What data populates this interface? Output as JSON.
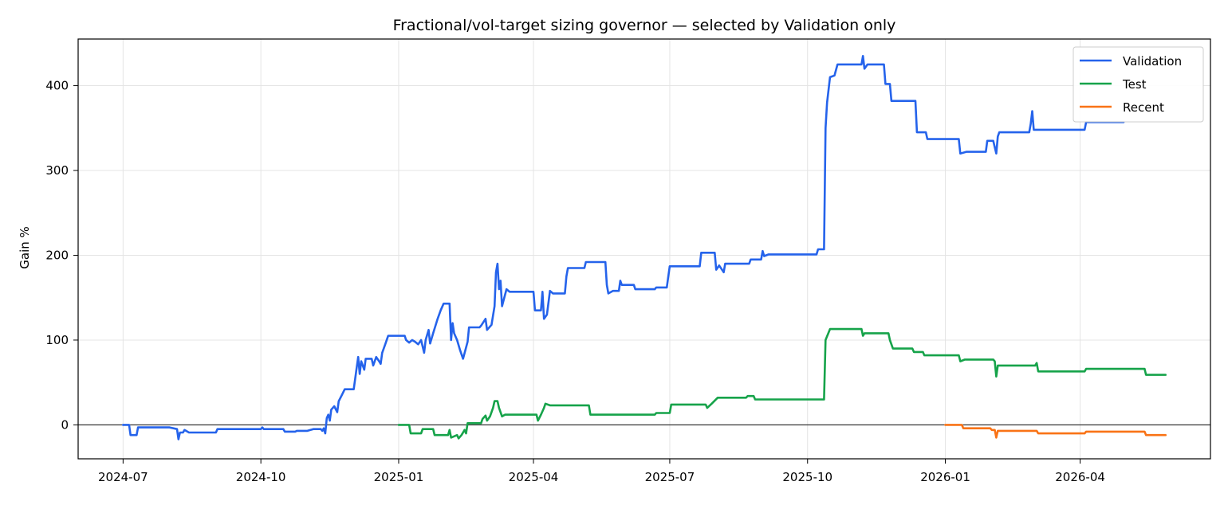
{
  "chart_data": {
    "type": "line",
    "title": "Fractional/vol-target sizing governor — selected by Validation only",
    "xlabel": "",
    "ylabel": "Gain %",
    "x_axis": {
      "type": "date",
      "range": [
        "2024-06-01",
        "2026-06-27"
      ],
      "ticks": [
        "2024-07",
        "2024-10",
        "2025-01",
        "2025-04",
        "2025-07",
        "2025-10",
        "2026-01",
        "2026-04"
      ]
    },
    "y_axis": {
      "range": [
        -40,
        455
      ],
      "ticks": [
        0,
        100,
        200,
        300,
        400
      ]
    },
    "grid": true,
    "zero_line": true,
    "legend": {
      "placement": "top-right"
    },
    "series": [
      {
        "name": "Validation",
        "color": "#2563eb",
        "points": [
          [
            "2024-07-01",
            0
          ],
          [
            "2024-07-05",
            0
          ],
          [
            "2024-07-06",
            -12
          ],
          [
            "2024-07-10",
            -12
          ],
          [
            "2024-07-11",
            -3
          ],
          [
            "2024-08-01",
            -3
          ],
          [
            "2024-08-06",
            -5
          ],
          [
            "2024-08-07",
            -17
          ],
          [
            "2024-08-08",
            -9
          ],
          [
            "2024-08-10",
            -9
          ],
          [
            "2024-08-11",
            -6
          ],
          [
            "2024-08-14",
            -9
          ],
          [
            "2024-09-01",
            -9
          ],
          [
            "2024-09-02",
            -5
          ],
          [
            "2024-10-01",
            -5
          ],
          [
            "2024-10-02",
            -3
          ],
          [
            "2024-10-03",
            -5
          ],
          [
            "2024-10-16",
            -5
          ],
          [
            "2024-10-17",
            -8
          ],
          [
            "2024-10-24",
            -8
          ],
          [
            "2024-10-25",
            -7
          ],
          [
            "2024-11-01",
            -7
          ],
          [
            "2024-11-05",
            -5
          ],
          [
            "2024-11-10",
            -5
          ],
          [
            "2024-11-11",
            -7
          ],
          [
            "2024-11-12",
            -4
          ],
          [
            "2024-11-13",
            -10
          ],
          [
            "2024-11-14",
            8
          ],
          [
            "2024-11-15",
            12
          ],
          [
            "2024-11-16",
            5
          ],
          [
            "2024-11-17",
            18
          ],
          [
            "2024-11-19",
            22
          ],
          [
            "2024-11-21",
            15
          ],
          [
            "2024-11-22",
            28
          ],
          [
            "2024-11-24",
            35
          ],
          [
            "2024-11-26",
            42
          ],
          [
            "2024-12-02",
            42
          ],
          [
            "2024-12-03",
            55
          ],
          [
            "2024-12-04",
            68
          ],
          [
            "2024-12-05",
            80
          ],
          [
            "2024-12-06",
            60
          ],
          [
            "2024-12-07",
            75
          ],
          [
            "2024-12-09",
            65
          ],
          [
            "2024-12-10",
            78
          ],
          [
            "2024-12-14",
            78
          ],
          [
            "2024-12-15",
            70
          ],
          [
            "2024-12-17",
            80
          ],
          [
            "2024-12-19",
            75
          ],
          [
            "2024-12-20",
            72
          ],
          [
            "2024-12-21",
            85
          ],
          [
            "2024-12-23",
            95
          ],
          [
            "2024-12-25",
            105
          ],
          [
            "2025-01-05",
            105
          ],
          [
            "2025-01-06",
            100
          ],
          [
            "2025-01-08",
            97
          ],
          [
            "2025-01-10",
            100
          ],
          [
            "2025-01-12",
            98
          ],
          [
            "2025-01-14",
            95
          ],
          [
            "2025-01-16",
            100
          ],
          [
            "2025-01-18",
            85
          ],
          [
            "2025-01-19",
            100
          ],
          [
            "2025-01-21",
            112
          ],
          [
            "2025-01-22",
            96
          ],
          [
            "2025-01-24",
            108
          ],
          [
            "2025-01-27",
            125
          ],
          [
            "2025-01-29",
            135
          ],
          [
            "2025-01-31",
            143
          ],
          [
            "2025-02-04",
            143
          ],
          [
            "2025-02-05",
            100
          ],
          [
            "2025-02-06",
            120
          ],
          [
            "2025-02-07",
            108
          ],
          [
            "2025-02-09",
            100
          ],
          [
            "2025-02-11",
            88
          ],
          [
            "2025-02-13",
            78
          ],
          [
            "2025-02-16",
            98
          ],
          [
            "2025-02-17",
            115
          ],
          [
            "2025-02-24",
            115
          ],
          [
            "2025-02-25",
            117
          ],
          [
            "2025-02-28",
            125
          ],
          [
            "2025-03-01",
            112
          ],
          [
            "2025-03-04",
            118
          ],
          [
            "2025-03-06",
            140
          ],
          [
            "2025-03-07",
            180
          ],
          [
            "2025-03-08",
            190
          ],
          [
            "2025-03-09",
            160
          ],
          [
            "2025-03-10",
            170
          ],
          [
            "2025-03-11",
            140
          ],
          [
            "2025-03-14",
            160
          ],
          [
            "2025-03-16",
            157
          ],
          [
            "2025-04-01",
            157
          ],
          [
            "2025-04-02",
            135
          ],
          [
            "2025-04-06",
            135
          ],
          [
            "2025-04-07",
            157
          ],
          [
            "2025-04-08",
            125
          ],
          [
            "2025-04-10",
            130
          ],
          [
            "2025-04-12",
            158
          ],
          [
            "2025-04-14",
            155
          ],
          [
            "2025-04-22",
            155
          ],
          [
            "2025-04-23",
            175
          ],
          [
            "2025-04-24",
            185
          ],
          [
            "2025-05-05",
            185
          ],
          [
            "2025-05-06",
            192
          ],
          [
            "2025-05-19",
            192
          ],
          [
            "2025-05-20",
            165
          ],
          [
            "2025-05-21",
            155
          ],
          [
            "2025-05-24",
            158
          ],
          [
            "2025-05-28",
            158
          ],
          [
            "2025-05-29",
            170
          ],
          [
            "2025-05-30",
            165
          ],
          [
            "2025-06-07",
            165
          ],
          [
            "2025-06-08",
            160
          ],
          [
            "2025-06-21",
            160
          ],
          [
            "2025-06-22",
            162
          ],
          [
            "2025-06-29",
            162
          ],
          [
            "2025-06-30",
            175
          ],
          [
            "2025-07-01",
            187
          ],
          [
            "2025-07-21",
            187
          ],
          [
            "2025-07-22",
            203
          ],
          [
            "2025-07-31",
            203
          ],
          [
            "2025-08-01",
            183
          ],
          [
            "2025-08-03",
            188
          ],
          [
            "2025-08-06",
            180
          ],
          [
            "2025-08-07",
            190
          ],
          [
            "2025-08-23",
            190
          ],
          [
            "2025-08-24",
            195
          ],
          [
            "2025-08-31",
            195
          ],
          [
            "2025-09-01",
            205
          ],
          [
            "2025-09-02",
            199
          ],
          [
            "2025-09-05",
            201
          ],
          [
            "2025-10-07",
            201
          ],
          [
            "2025-10-08",
            207
          ],
          [
            "2025-10-12",
            207
          ],
          [
            "2025-10-13",
            350
          ],
          [
            "2025-10-14",
            380
          ],
          [
            "2025-10-16",
            410
          ],
          [
            "2025-10-19",
            412
          ],
          [
            "2025-10-21",
            425
          ],
          [
            "2025-11-06",
            425
          ],
          [
            "2025-11-07",
            435
          ],
          [
            "2025-11-08",
            420
          ],
          [
            "2025-11-10",
            425
          ],
          [
            "2025-11-21",
            425
          ],
          [
            "2025-11-22",
            402
          ],
          [
            "2025-11-25",
            402
          ],
          [
            "2025-11-26",
            382
          ],
          [
            "2025-12-12",
            382
          ],
          [
            "2025-12-13",
            345
          ],
          [
            "2025-12-19",
            345
          ],
          [
            "2025-12-20",
            337
          ],
          [
            "2026-01-10",
            337
          ],
          [
            "2026-01-11",
            320
          ],
          [
            "2026-01-15",
            322
          ],
          [
            "2026-01-28",
            322
          ],
          [
            "2026-01-29",
            335
          ],
          [
            "2026-02-02",
            335
          ],
          [
            "2026-02-04",
            320
          ],
          [
            "2026-02-05",
            340
          ],
          [
            "2026-02-06",
            345
          ],
          [
            "2026-02-26",
            345
          ],
          [
            "2026-02-27",
            355
          ],
          [
            "2026-02-28",
            370
          ],
          [
            "2026-03-01",
            348
          ],
          [
            "2026-04-04",
            348
          ],
          [
            "2026-04-05",
            357
          ],
          [
            "2026-04-30",
            357
          ]
        ]
      },
      {
        "name": "Test",
        "color": "#16a34a",
        "points": [
          [
            "2025-01-01",
            0
          ],
          [
            "2025-01-08",
            0
          ],
          [
            "2025-01-09",
            -10
          ],
          [
            "2025-01-16",
            -10
          ],
          [
            "2025-01-17",
            -5
          ],
          [
            "2025-01-24",
            -5
          ],
          [
            "2025-01-25",
            -12
          ],
          [
            "2025-02-03",
            -12
          ],
          [
            "2025-02-04",
            -6
          ],
          [
            "2025-02-05",
            -15
          ],
          [
            "2025-02-09",
            -12
          ],
          [
            "2025-02-10",
            -16
          ],
          [
            "2025-02-12",
            -12
          ],
          [
            "2025-02-14",
            -6
          ],
          [
            "2025-02-15",
            -10
          ],
          [
            "2025-02-16",
            2
          ],
          [
            "2025-02-25",
            2
          ],
          [
            "2025-02-26",
            7
          ],
          [
            "2025-02-28",
            11
          ],
          [
            "2025-03-01",
            5
          ],
          [
            "2025-03-03",
            10
          ],
          [
            "2025-03-05",
            20
          ],
          [
            "2025-03-06",
            28
          ],
          [
            "2025-03-08",
            28
          ],
          [
            "2025-03-09",
            20
          ],
          [
            "2025-03-11",
            10
          ],
          [
            "2025-03-13",
            12
          ],
          [
            "2025-04-03",
            12
          ],
          [
            "2025-04-04",
            5
          ],
          [
            "2025-04-06",
            12
          ],
          [
            "2025-04-08",
            20
          ],
          [
            "2025-04-09",
            25
          ],
          [
            "2025-04-12",
            23
          ],
          [
            "2025-05-08",
            23
          ],
          [
            "2025-05-09",
            12
          ],
          [
            "2025-06-21",
            12
          ],
          [
            "2025-06-22",
            14
          ],
          [
            "2025-07-01",
            14
          ],
          [
            "2025-07-02",
            24
          ],
          [
            "2025-07-25",
            24
          ],
          [
            "2025-07-26",
            20
          ],
          [
            "2025-07-29",
            25
          ],
          [
            "2025-08-02",
            32
          ],
          [
            "2025-08-21",
            32
          ],
          [
            "2025-08-22",
            34
          ],
          [
            "2025-08-26",
            34
          ],
          [
            "2025-08-27",
            30
          ],
          [
            "2025-10-12",
            30
          ],
          [
            "2025-10-13",
            100
          ],
          [
            "2025-10-16",
            113
          ],
          [
            "2025-11-06",
            113
          ],
          [
            "2025-11-07",
            105
          ],
          [
            "2025-11-08",
            108
          ],
          [
            "2025-11-24",
            108
          ],
          [
            "2025-11-25",
            100
          ],
          [
            "2025-11-27",
            90
          ],
          [
            "2025-12-10",
            90
          ],
          [
            "2025-12-11",
            86
          ],
          [
            "2025-12-17",
            86
          ],
          [
            "2025-12-18",
            82
          ],
          [
            "2026-01-10",
            82
          ],
          [
            "2026-01-11",
            75
          ],
          [
            "2026-01-14",
            77
          ],
          [
            "2026-02-02",
            77
          ],
          [
            "2026-02-03",
            75
          ],
          [
            "2026-02-04",
            57
          ],
          [
            "2026-02-05",
            70
          ],
          [
            "2026-03-02",
            70
          ],
          [
            "2026-03-03",
            73
          ],
          [
            "2026-03-04",
            63
          ],
          [
            "2026-04-04",
            63
          ],
          [
            "2026-04-05",
            66
          ],
          [
            "2026-05-14",
            66
          ],
          [
            "2026-05-15",
            59
          ],
          [
            "2026-05-28",
            59
          ]
        ]
      },
      {
        "name": "Recent",
        "color": "#f97316",
        "points": [
          [
            "2026-01-01",
            0
          ],
          [
            "2026-01-12",
            0
          ],
          [
            "2026-01-13",
            -4
          ],
          [
            "2026-01-31",
            -4
          ],
          [
            "2026-02-01",
            -6
          ],
          [
            "2026-02-03",
            -6
          ],
          [
            "2026-02-04",
            -15
          ],
          [
            "2026-02-05",
            -7
          ],
          [
            "2026-03-03",
            -7
          ],
          [
            "2026-03-04",
            -10
          ],
          [
            "2026-04-04",
            -10
          ],
          [
            "2026-04-05",
            -8
          ],
          [
            "2026-05-14",
            -8
          ],
          [
            "2026-05-15",
            -12
          ],
          [
            "2026-05-28",
            -12
          ]
        ]
      }
    ]
  }
}
